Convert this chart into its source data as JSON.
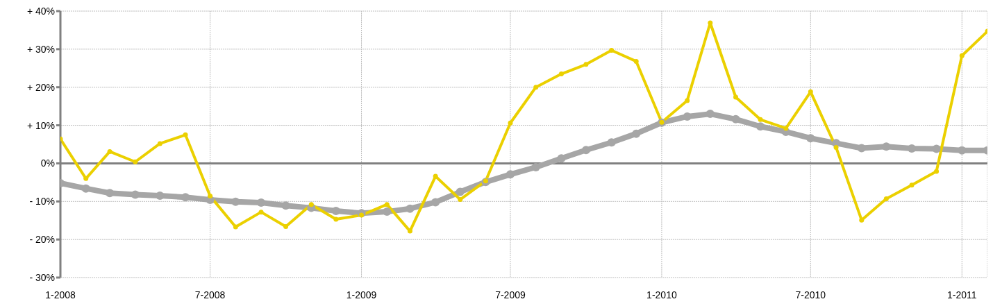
{
  "chart_data": {
    "type": "line",
    "x": [
      "2008-01",
      "2008-02",
      "2008-03",
      "2008-04",
      "2008-05",
      "2008-06",
      "2008-07",
      "2008-08",
      "2008-09",
      "2008-10",
      "2008-11",
      "2008-12",
      "2009-01",
      "2009-02",
      "2009-03",
      "2009-04",
      "2009-05",
      "2009-06",
      "2009-07",
      "2009-08",
      "2009-09",
      "2009-10",
      "2009-11",
      "2009-12",
      "2010-01",
      "2010-02",
      "2010-03",
      "2010-04",
      "2010-05",
      "2010-06",
      "2010-07",
      "2010-08",
      "2010-09",
      "2010-10",
      "2010-11",
      "2010-12",
      "2011-01",
      "2011-02"
    ],
    "series": [
      {
        "color": "#a6a6a6",
        "values": [
          -5.2,
          -6.6,
          -7.8,
          -8.2,
          -8.5,
          -8.9,
          -9.6,
          -10.1,
          -10.3,
          -11.1,
          -11.7,
          -12.5,
          -13.1,
          -12.7,
          -11.9,
          -10.2,
          -7.5,
          -4.9,
          -2.9,
          -1.0,
          1.3,
          3.5,
          5.5,
          7.8,
          10.7,
          12.3,
          13.0,
          11.6,
          9.7,
          8.3,
          6.6,
          5.3,
          4.0,
          4.4,
          3.9,
          3.8,
          3.4,
          3.4
        ]
      },
      {
        "color": "#ebd000",
        "values": [
          6.4,
          -4.0,
          3.1,
          0.4,
          5.2,
          7.5,
          -8.6,
          -16.7,
          -12.8,
          -16.6,
          -10.8,
          -14.7,
          -13.6,
          -10.8,
          -17.8,
          -3.4,
          -9.5,
          -4.6,
          10.6,
          20.0,
          23.5,
          26.0,
          29.7,
          26.8,
          10.8,
          16.5,
          36.9,
          17.4,
          11.5,
          9.2,
          18.8,
          4.2,
          -14.9,
          -9.3,
          -5.7,
          -2.1,
          28.3,
          34.7
        ]
      }
    ],
    "xlim": [
      "2008-01",
      "2011-02"
    ],
    "xticks": [
      {
        "value": "2008-01",
        "label": "1-2008"
      },
      {
        "value": "2008-07",
        "label": "7-2008"
      },
      {
        "value": "2009-01",
        "label": "1-2009"
      },
      {
        "value": "2009-07",
        "label": "7-2009"
      },
      {
        "value": "2010-01",
        "label": "1-2010"
      },
      {
        "value": "2010-07",
        "label": "7-2010"
      },
      {
        "value": "2011-01",
        "label": "1-2011"
      }
    ],
    "ylim": [
      -30,
      40
    ],
    "yticks": [
      {
        "value": -30,
        "label": "- 30%"
      },
      {
        "value": -20,
        "label": "- 20%"
      },
      {
        "value": -10,
        "label": "- 10%"
      },
      {
        "value": 0,
        "label": "0%"
      },
      {
        "value": 10,
        "label": "+ 10%"
      },
      {
        "value": 20,
        "label": "+ 20%"
      },
      {
        "value": 30,
        "label": "+ 30%"
      },
      {
        "value": 40,
        "label": "+ 40%"
      }
    ],
    "ref_lines": [
      {
        "axis": "y",
        "value": 0,
        "color": "#808080"
      }
    ],
    "grid": true,
    "legend": false,
    "marker": "circle",
    "line_style": "solid"
  }
}
